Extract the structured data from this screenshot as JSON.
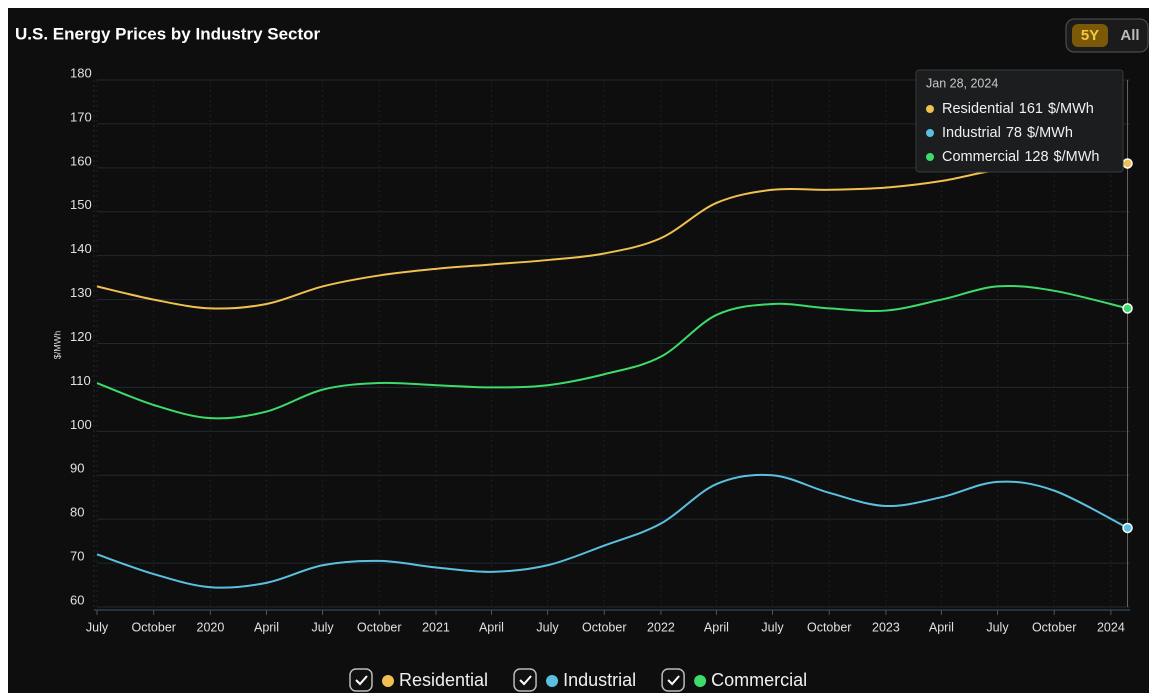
{
  "chart_data": {
    "type": "line",
    "title": "U.S. Energy Prices by Industry Sector",
    "y_label": "$/MWh",
    "range_buttons": [
      "5Y",
      "All"
    ],
    "active_range": "5Y",
    "x": [
      "2019-07",
      "2019-10",
      "2020-01",
      "2020-04",
      "2020-07",
      "2020-10",
      "2021-01",
      "2021-04",
      "2021-07",
      "2021-10",
      "2022-01",
      "2022-04",
      "2022-07",
      "2022-10",
      "2023-01",
      "2023-04",
      "2023-07",
      "2023-10",
      "2024-01-28"
    ],
    "xlim": [
      "2019-07",
      "2024-02"
    ],
    "xticks": [
      {
        "value": "2019-07",
        "label": "July"
      },
      {
        "value": "2019-10",
        "label": "October"
      },
      {
        "value": "2020-01",
        "label": "2020"
      },
      {
        "value": "2020-04",
        "label": "April"
      },
      {
        "value": "2020-07",
        "label": "July"
      },
      {
        "value": "2020-10",
        "label": "October"
      },
      {
        "value": "2021-01",
        "label": "2021"
      },
      {
        "value": "2021-04",
        "label": "April"
      },
      {
        "value": "2021-07",
        "label": "July"
      },
      {
        "value": "2021-10",
        "label": "October"
      },
      {
        "value": "2022-01",
        "label": "2022"
      },
      {
        "value": "2022-04",
        "label": "April"
      },
      {
        "value": "2022-07",
        "label": "July"
      },
      {
        "value": "2022-10",
        "label": "October"
      },
      {
        "value": "2023-01",
        "label": "2023"
      },
      {
        "value": "2023-04",
        "label": "April"
      },
      {
        "value": "2023-07",
        "label": "July"
      },
      {
        "value": "2023-10",
        "label": "October"
      },
      {
        "value": "2024-01",
        "label": "2024"
      }
    ],
    "ylim": [
      60,
      180
    ],
    "yticks": [
      60,
      70,
      80,
      90,
      100,
      110,
      120,
      130,
      140,
      150,
      160,
      170,
      180
    ],
    "grid": true,
    "tooltip_date": "Jan 28, 2024",
    "series": [
      {
        "name": "Residential",
        "color": "#f0c050",
        "values": [
          133,
          130,
          128,
          129,
          133,
          135.5,
          137,
          138,
          139,
          140.5,
          144,
          152,
          155,
          155,
          155.5,
          157,
          159.5,
          160.5,
          161
        ]
      },
      {
        "name": "Industrial",
        "color": "#5bc0e0",
        "values": [
          72,
          67.5,
          64.5,
          65.5,
          69.5,
          70.5,
          69,
          68,
          69.5,
          74,
          79,
          88,
          90,
          86,
          83,
          85,
          88.5,
          86.5,
          78
        ]
      },
      {
        "name": "Commercial",
        "color": "#3ddc6a",
        "values": [
          111,
          106,
          103,
          104.5,
          109.5,
          111,
          110.5,
          110,
          110.5,
          113,
          117,
          126.5,
          129,
          128,
          127.5,
          130,
          133,
          132,
          128
        ]
      }
    ]
  }
}
